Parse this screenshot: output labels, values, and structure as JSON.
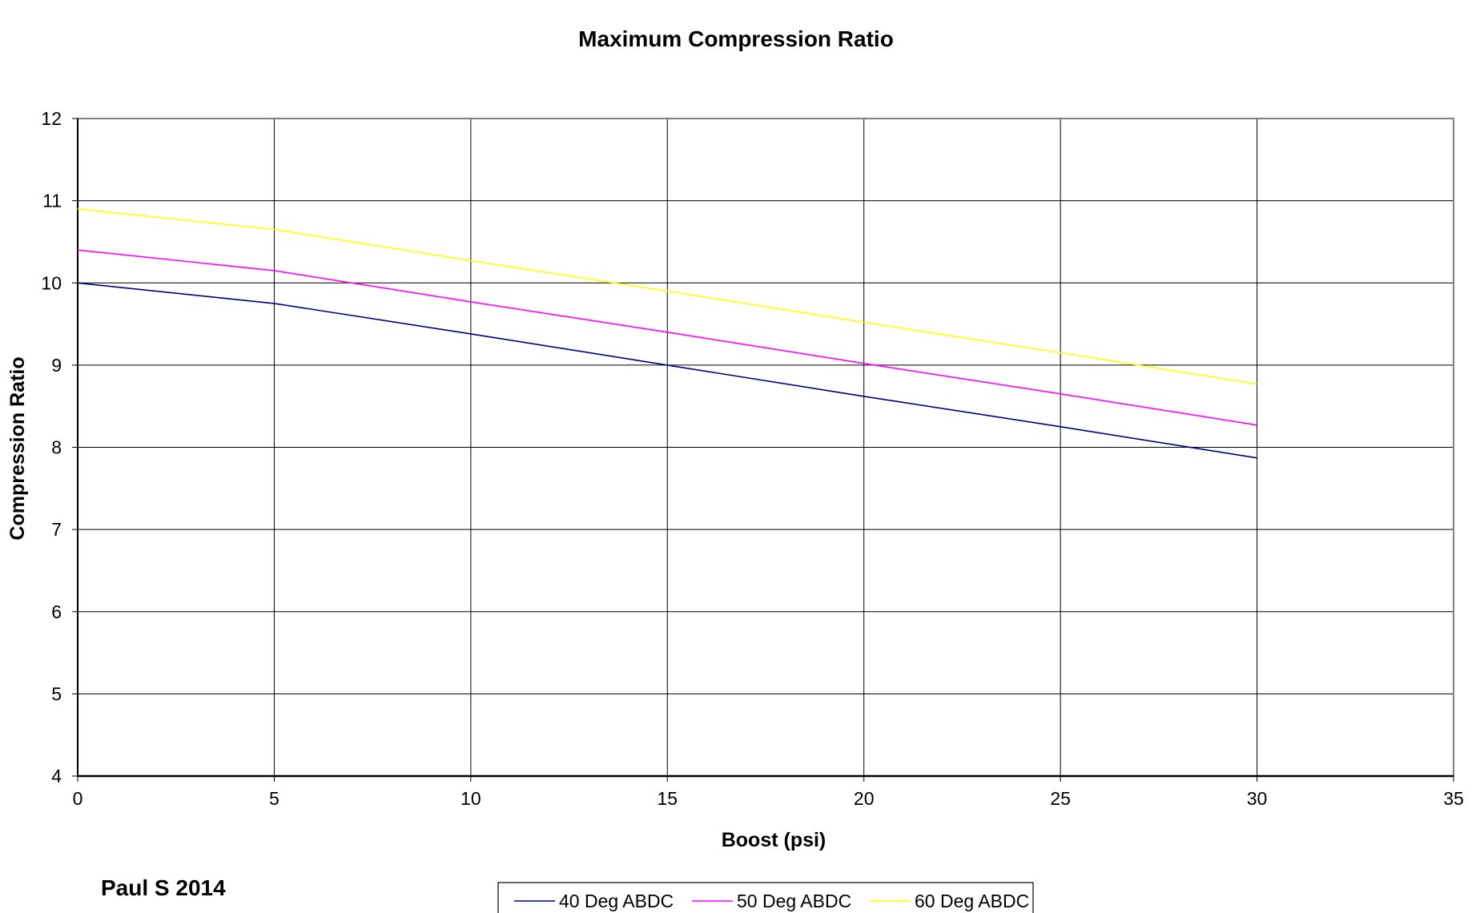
{
  "chart_data": {
    "type": "line",
    "title": "Maximum Compression Ratio",
    "xlabel": "Boost (psi)",
    "ylabel": "Compression Ratio",
    "xlim": [
      0,
      35
    ],
    "ylim": [
      4,
      12
    ],
    "xticks": [
      "0",
      "5",
      "10",
      "15",
      "20",
      "25",
      "30",
      "35"
    ],
    "yticks": [
      "4",
      "5",
      "6",
      "7",
      "8",
      "9",
      "10",
      "11",
      "12"
    ],
    "grid": true,
    "legend_position": "bottom",
    "x": [
      0,
      5,
      10,
      15,
      20,
      25,
      30
    ],
    "series": [
      {
        "name": "40 Deg ABDC",
        "color": "#000080",
        "values": [
          10.0,
          9.75,
          9.38,
          9.0,
          8.62,
          8.25,
          7.87
        ]
      },
      {
        "name": "50 Deg ABDC",
        "color": "#ff00ff",
        "values": [
          10.4,
          10.15,
          9.77,
          9.4,
          9.02,
          8.65,
          8.27
        ]
      },
      {
        "name": "60 Deg ABDC",
        "color": "#ffff00",
        "values": [
          10.9,
          10.65,
          10.27,
          9.9,
          9.52,
          9.15,
          8.77
        ]
      }
    ]
  },
  "annotation": "Paul S 2014"
}
